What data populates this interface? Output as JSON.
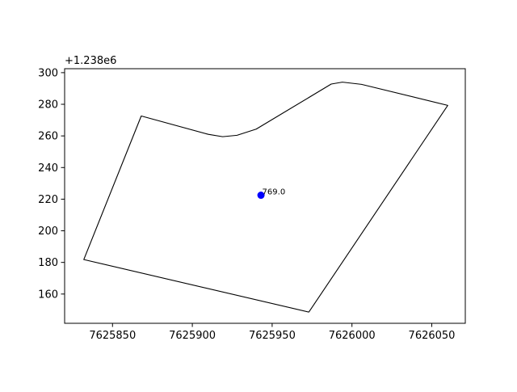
{
  "chart_data": {
    "type": "scatter",
    "title": "",
    "xlabel": "",
    "ylabel": "",
    "y_offset_text": "+1.238e6",
    "y_offset": 1238000,
    "xlim": [
      7625820,
      7626071
    ],
    "ylim": [
      1238141.5,
      1238302.5
    ],
    "x_ticks": [
      7625850,
      7625900,
      7625950,
      7626000,
      7626050
    ],
    "x_tick_labels": [
      "7625850",
      "7625900",
      "7625950",
      "7626000",
      "7626050"
    ],
    "y_ticks": [
      160,
      180,
      200,
      220,
      240,
      260,
      280,
      300
    ],
    "y_tick_labels": [
      "160",
      "180",
      "200",
      "220",
      "240",
      "260",
      "280",
      "300"
    ],
    "grid": false,
    "polygon_color": "#000000",
    "point_color": "#0000ff",
    "polygon": [
      [
        7625832,
        1238181.8
      ],
      [
        7625868,
        1238272.6
      ],
      [
        7625910,
        1238261.0
      ],
      [
        7625919,
        1238259.5
      ],
      [
        7625928,
        1238260.4
      ],
      [
        7625940,
        1238264.3
      ],
      [
        7625975,
        1238285.5
      ],
      [
        7625987,
        1238292.8
      ],
      [
        7625994,
        1238294.0
      ],
      [
        7626006,
        1238292.6
      ],
      [
        7626060,
        1238279.3
      ],
      [
        7625973,
        1238148.6
      ]
    ],
    "points": [
      {
        "x": 7625943,
        "y": 1238222.5,
        "label": "769.0"
      }
    ]
  }
}
